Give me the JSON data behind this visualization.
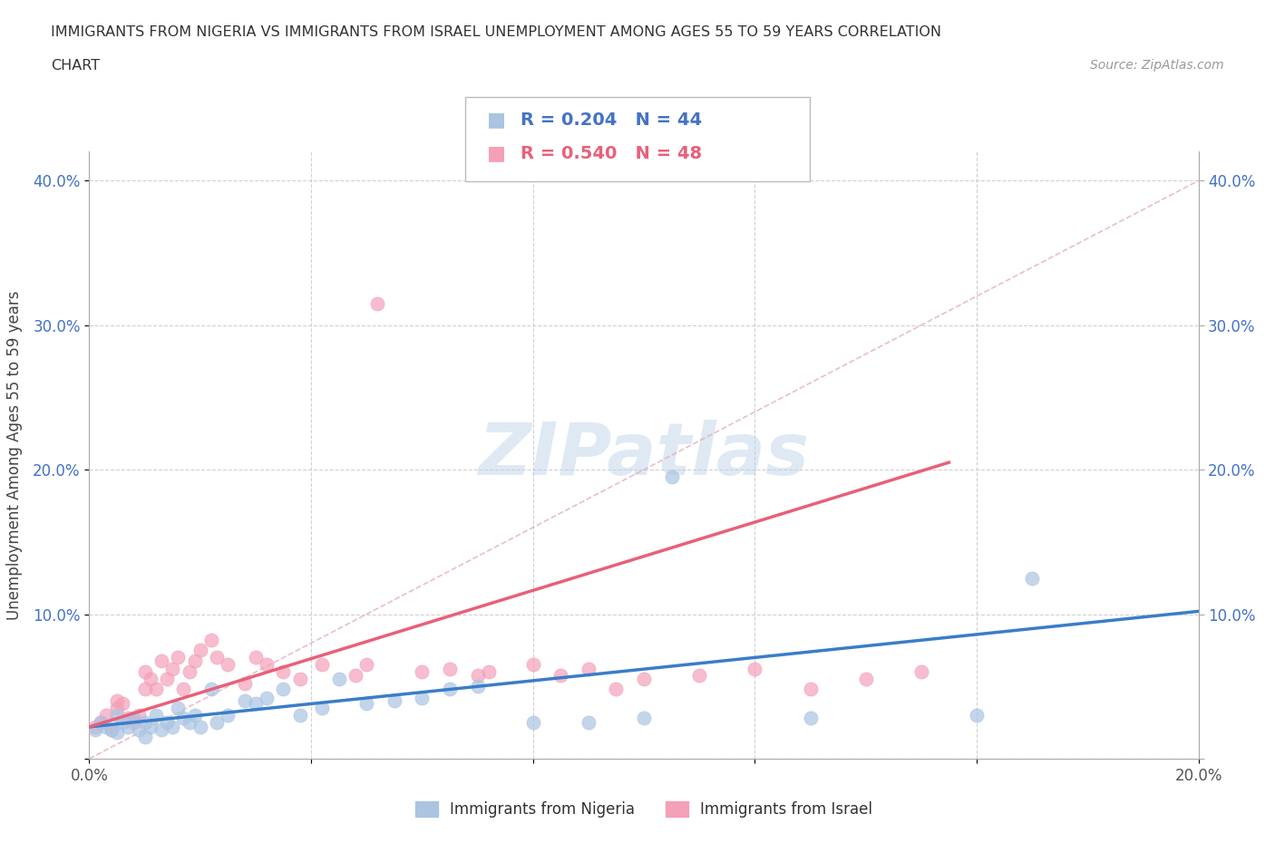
{
  "title_line1": "IMMIGRANTS FROM NIGERIA VS IMMIGRANTS FROM ISRAEL UNEMPLOYMENT AMONG AGES 55 TO 59 YEARS CORRELATION",
  "title_line2": "CHART",
  "source_text": "Source: ZipAtlas.com",
  "ylabel": "Unemployment Among Ages 55 to 59 years",
  "xlim": [
    0.0,
    0.2
  ],
  "ylim": [
    0.0,
    0.42
  ],
  "xticks": [
    0.0,
    0.04,
    0.08,
    0.12,
    0.16,
    0.2
  ],
  "yticks": [
    0.0,
    0.1,
    0.2,
    0.3,
    0.4
  ],
  "xticklabels": [
    "0.0%",
    "",
    "",
    "",
    "",
    "20.0%"
  ],
  "yticklabels": [
    "",
    "10.0%",
    "20.0%",
    "30.0%",
    "40.0%"
  ],
  "nigeria_color": "#aac4e2",
  "israel_color": "#f4a0b8",
  "nigeria_line_color": "#3a7dc9",
  "israel_line_color": "#e8607a",
  "nigeria_R": 0.204,
  "nigeria_N": 44,
  "israel_R": 0.54,
  "israel_N": 48,
  "watermark": "ZIPatlas",
  "legend_nigeria_label": "Immigrants from Nigeria",
  "legend_israel_label": "Immigrants from Israel",
  "nigeria_scatter_x": [
    0.001,
    0.002,
    0.003,
    0.004,
    0.005,
    0.005,
    0.006,
    0.007,
    0.008,
    0.009,
    0.01,
    0.01,
    0.011,
    0.012,
    0.013,
    0.014,
    0.015,
    0.016,
    0.017,
    0.018,
    0.019,
    0.02,
    0.022,
    0.023,
    0.025,
    0.028,
    0.03,
    0.032,
    0.035,
    0.038,
    0.042,
    0.045,
    0.05,
    0.055,
    0.06,
    0.065,
    0.07,
    0.08,
    0.09,
    0.1,
    0.105,
    0.13,
    0.16,
    0.17
  ],
  "nigeria_scatter_y": [
    0.02,
    0.025,
    0.022,
    0.02,
    0.03,
    0.018,
    0.025,
    0.022,
    0.028,
    0.02,
    0.025,
    0.015,
    0.022,
    0.03,
    0.02,
    0.025,
    0.022,
    0.035,
    0.028,
    0.025,
    0.03,
    0.022,
    0.048,
    0.025,
    0.03,
    0.04,
    0.038,
    0.042,
    0.048,
    0.03,
    0.035,
    0.055,
    0.038,
    0.04,
    0.042,
    0.048,
    0.05,
    0.025,
    0.025,
    0.028,
    0.195,
    0.028,
    0.03,
    0.125
  ],
  "israel_scatter_x": [
    0.001,
    0.002,
    0.003,
    0.004,
    0.005,
    0.005,
    0.006,
    0.007,
    0.008,
    0.009,
    0.01,
    0.01,
    0.011,
    0.012,
    0.013,
    0.014,
    0.015,
    0.016,
    0.017,
    0.018,
    0.019,
    0.02,
    0.022,
    0.023,
    0.025,
    0.028,
    0.03,
    0.032,
    0.035,
    0.038,
    0.042,
    0.048,
    0.05,
    0.052,
    0.06,
    0.065,
    0.07,
    0.072,
    0.08,
    0.085,
    0.09,
    0.095,
    0.1,
    0.11,
    0.12,
    0.13,
    0.14,
    0.15
  ],
  "israel_scatter_y": [
    0.022,
    0.025,
    0.03,
    0.02,
    0.035,
    0.04,
    0.038,
    0.028,
    0.025,
    0.03,
    0.06,
    0.048,
    0.055,
    0.048,
    0.068,
    0.055,
    0.062,
    0.07,
    0.048,
    0.06,
    0.068,
    0.075,
    0.082,
    0.07,
    0.065,
    0.052,
    0.07,
    0.065,
    0.06,
    0.055,
    0.065,
    0.058,
    0.065,
    0.315,
    0.06,
    0.062,
    0.058,
    0.06,
    0.065,
    0.058,
    0.062,
    0.048,
    0.055,
    0.058,
    0.062,
    0.048,
    0.055,
    0.06
  ],
  "nigeria_trend_x": [
    0.0,
    0.2
  ],
  "nigeria_trend_y": [
    0.022,
    0.102
  ],
  "israel_trend_x": [
    0.0,
    0.155
  ],
  "israel_trend_y": [
    0.022,
    0.205
  ],
  "dashed_line_x": [
    0.0,
    0.2
  ],
  "dashed_line_y": [
    0.0,
    0.4
  ]
}
